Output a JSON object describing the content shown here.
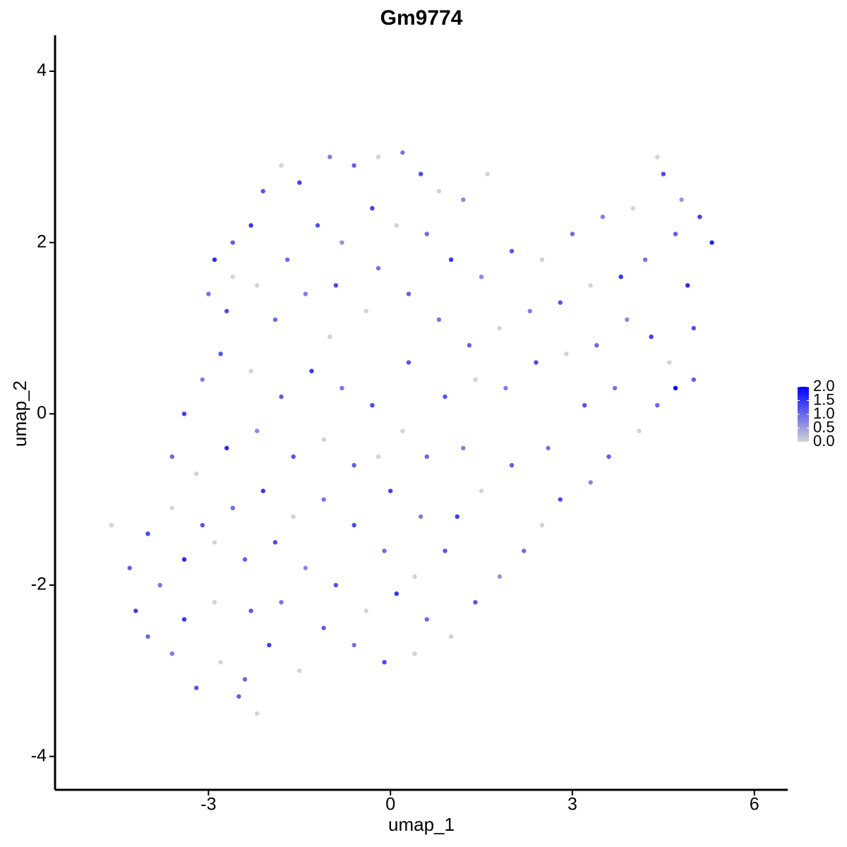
{
  "chart_data": {
    "type": "scatter",
    "title": "Gm9774",
    "x_label": "umap_1",
    "y_label": "umap_2",
    "xlim": [
      -5.53,
      6.55
    ],
    "ylim": [
      -4.39,
      4.42
    ],
    "xticks": [
      -3,
      0,
      3,
      6
    ],
    "yticks": [
      -4,
      -2,
      0,
      2,
      4
    ],
    "color_scale": {
      "low": "#d3d3d3",
      "high": "#0000ff",
      "lim": [
        0,
        2
      ],
      "ticks": [
        {
          "value": 2,
          "label": "2.0"
        },
        {
          "value": 1.5,
          "label": "1.5"
        },
        {
          "value": 1,
          "label": "1.0"
        },
        {
          "value": 0.5,
          "label": "0.5"
        },
        {
          "value": 0,
          "label": "0.0"
        }
      ]
    },
    "points": [
      [
        -2.1,
        2.6,
        1.2
      ],
      [
        -1.8,
        2.9,
        0
      ],
      [
        -1.5,
        2.7,
        1.4
      ],
      [
        -1.0,
        3.0,
        0.8
      ],
      [
        -0.6,
        2.9,
        1.1
      ],
      [
        -0.2,
        3.0,
        0
      ],
      [
        0.2,
        3.05,
        0.9
      ],
      [
        0.5,
        2.8,
        1.3
      ],
      [
        0.8,
        2.6,
        0
      ],
      [
        1.2,
        2.5,
        0.7
      ],
      [
        1.6,
        2.8,
        0
      ],
      [
        -2.3,
        2.2,
        1.5
      ],
      [
        -2.6,
        2.0,
        1.1
      ],
      [
        -2.9,
        1.8,
        1.6
      ],
      [
        -3.0,
        1.4,
        0.9
      ],
      [
        -2.7,
        1.2,
        1.3
      ],
      [
        -2.2,
        1.5,
        0
      ],
      [
        -1.7,
        1.8,
        1.0
      ],
      [
        -1.2,
        2.2,
        1.2
      ],
      [
        -0.8,
        2.0,
        0.6
      ],
      [
        -0.3,
        2.4,
        1.4
      ],
      [
        0.1,
        2.2,
        0
      ],
      [
        0.6,
        2.1,
        1.0
      ],
      [
        1.0,
        1.8,
        1.5
      ],
      [
        -1.4,
        1.4,
        0.8
      ],
      [
        -0.9,
        1.5,
        1.3
      ],
      [
        -0.4,
        1.2,
        0
      ],
      [
        0.3,
        1.4,
        1.1
      ],
      [
        0.8,
        1.1,
        0.9
      ],
      [
        1.5,
        1.6,
        0.7
      ],
      [
        2.0,
        1.9,
        1.2
      ],
      [
        2.5,
        1.8,
        0
      ],
      [
        3.0,
        2.1,
        1.0
      ],
      [
        3.5,
        2.3,
        0.8
      ],
      [
        4.0,
        2.4,
        0
      ],
      [
        4.5,
        2.8,
        1.3
      ],
      [
        4.8,
        2.5,
        0.6
      ],
      [
        5.1,
        2.3,
        1.4
      ],
      [
        5.3,
        2.0,
        1.7
      ],
      [
        4.4,
        3.0,
        0
      ],
      [
        4.7,
        2.1,
        1.1
      ],
      [
        4.2,
        1.8,
        0.9
      ],
      [
        3.8,
        1.6,
        1.5
      ],
      [
        3.3,
        1.5,
        0
      ],
      [
        2.8,
        1.3,
        1.2
      ],
      [
        2.3,
        1.2,
        0.8
      ],
      [
        1.8,
        1.0,
        0
      ],
      [
        1.3,
        0.8,
        1.1
      ],
      [
        4.9,
        1.5,
        1.6
      ],
      [
        5.0,
        1.0,
        1.2
      ],
      [
        4.6,
        0.6,
        0
      ],
      [
        4.3,
        0.9,
        1.4
      ],
      [
        3.9,
        1.1,
        0.7
      ],
      [
        3.4,
        0.8,
        1.0
      ],
      [
        2.9,
        0.7,
        0
      ],
      [
        2.4,
        0.6,
        1.3
      ],
      [
        4.7,
        0.3,
        2.0
      ],
      [
        5.0,
        0.4,
        1.1
      ],
      [
        3.7,
        0.3,
        0.9
      ],
      [
        3.2,
        0.1,
        1.2
      ],
      [
        1.9,
        0.3,
        0.8
      ],
      [
        1.4,
        0.4,
        0
      ],
      [
        4.4,
        0.1,
        1.0
      ],
      [
        4.1,
        -0.2,
        0
      ],
      [
        3.6,
        -0.5,
        1.1
      ],
      [
        3.3,
        -0.8,
        0.7
      ],
      [
        2.8,
        -1.0,
        1.3
      ],
      [
        2.5,
        -1.3,
        0
      ],
      [
        2.2,
        -1.6,
        1.0
      ],
      [
        1.8,
        -1.9,
        0.6
      ],
      [
        1.4,
        -2.2,
        1.2
      ],
      [
        1.0,
        -2.6,
        0
      ],
      [
        2.6,
        -0.4,
        0.9
      ],
      [
        2.0,
        -0.6,
        1.1
      ],
      [
        1.5,
        -0.9,
        0
      ],
      [
        1.1,
        -1.2,
        1.4
      ],
      [
        0.6,
        -0.5,
        1.0
      ],
      [
        0.2,
        -0.2,
        0
      ],
      [
        -0.3,
        0.1,
        1.3
      ],
      [
        -0.8,
        0.3,
        0.9
      ],
      [
        -1.3,
        0.5,
        1.5
      ],
      [
        -1.8,
        0.2,
        1.1
      ],
      [
        -2.3,
        0.5,
        0
      ],
      [
        -2.8,
        0.7,
        1.2
      ],
      [
        -3.1,
        0.4,
        0.8
      ],
      [
        -3.4,
        0.0,
        1.4
      ],
      [
        -3.6,
        -0.5,
        1.0
      ],
      [
        -3.2,
        -0.7,
        0
      ],
      [
        -2.7,
        -0.4,
        1.6
      ],
      [
        -2.2,
        -0.2,
        0.7
      ],
      [
        -1.6,
        -0.5,
        1.2
      ],
      [
        -1.1,
        -0.3,
        0
      ],
      [
        -0.6,
        -0.6,
        1.1
      ],
      [
        0.0,
        -0.9,
        1.4
      ],
      [
        0.5,
        -1.2,
        0.8
      ],
      [
        0.9,
        -1.6,
        1.2
      ],
      [
        0.4,
        -1.9,
        0
      ],
      [
        -0.1,
        -1.6,
        1.0
      ],
      [
        -0.6,
        -1.3,
        1.3
      ],
      [
        -1.1,
        -1.0,
        0.9
      ],
      [
        -1.6,
        -1.2,
        0
      ],
      [
        -2.1,
        -0.9,
        1.5
      ],
      [
        -2.6,
        -1.1,
        1.0
      ],
      [
        -3.1,
        -1.3,
        1.2
      ],
      [
        -3.6,
        -1.1,
        0
      ],
      [
        -4.0,
        -1.4,
        1.3
      ],
      [
        -4.3,
        -1.8,
        1.1
      ],
      [
        -4.6,
        -1.3,
        0
      ],
      [
        -4.2,
        -2.3,
        1.4
      ],
      [
        -3.8,
        -2.0,
        0.9
      ],
      [
        -3.4,
        -1.7,
        1.6
      ],
      [
        -2.9,
        -1.5,
        0
      ],
      [
        -2.4,
        -1.7,
        1.1
      ],
      [
        -1.9,
        -1.5,
        1.3
      ],
      [
        -1.4,
        -1.8,
        0.7
      ],
      [
        -0.9,
        -2.0,
        1.2
      ],
      [
        -0.4,
        -2.3,
        0
      ],
      [
        0.1,
        -2.1,
        1.5
      ],
      [
        0.6,
        -2.4,
        1.0
      ],
      [
        0.4,
        -2.8,
        0
      ],
      [
        -0.1,
        -2.9,
        1.3
      ],
      [
        -0.6,
        -2.7,
        0.9
      ],
      [
        -1.1,
        -2.5,
        1.1
      ],
      [
        -1.5,
        -3.0,
        0
      ],
      [
        -2.0,
        -2.7,
        1.4
      ],
      [
        -2.4,
        -3.1,
        1.0
      ],
      [
        -2.8,
        -2.9,
        0
      ],
      [
        -3.2,
        -3.2,
        1.2
      ],
      [
        -3.6,
        -2.8,
        0.8
      ],
      [
        -4.0,
        -2.6,
        1.0
      ],
      [
        -3.4,
        -2.4,
        1.5
      ],
      [
        -2.9,
        -2.2,
        0
      ],
      [
        -2.3,
        -2.3,
        1.2
      ],
      [
        -1.8,
        -2.2,
        0.9
      ],
      [
        -2.2,
        -3.5,
        0
      ],
      [
        -2.5,
        -3.3,
        1.1
      ],
      [
        -0.2,
        -0.5,
        0
      ],
      [
        0.9,
        0.2,
        1.2
      ],
      [
        -1.9,
        1.1,
        1.0
      ],
      [
        -2.6,
        1.6,
        0
      ],
      [
        -0.2,
        1.7,
        0.9
      ],
      [
        1.2,
        -0.4,
        0.8
      ],
      [
        0.3,
        0.6,
        1.2
      ],
      [
        -1.0,
        0.9,
        0
      ]
    ]
  }
}
